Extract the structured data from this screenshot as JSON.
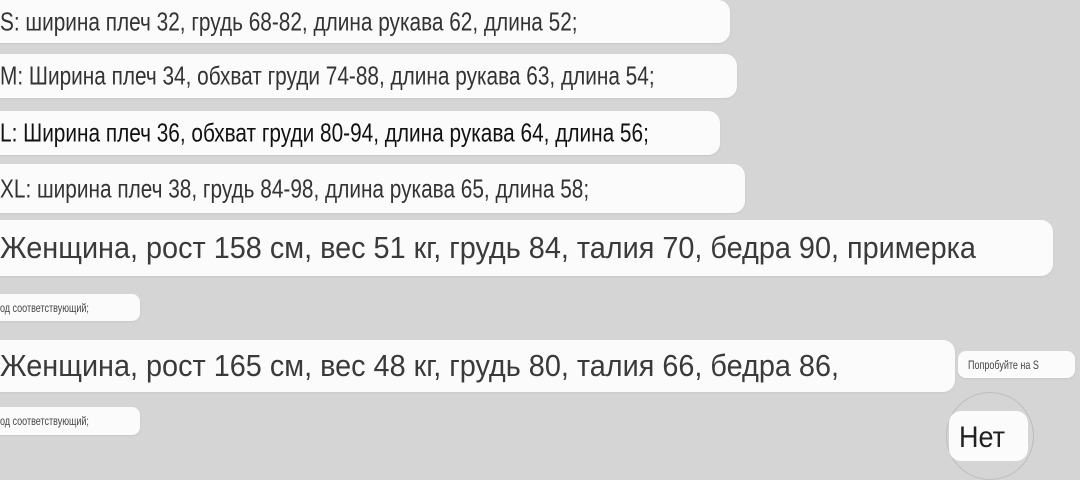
{
  "sizes": [
    {
      "label": "S: ширина плеч 32, грудь 68-82, длина рукава 62, длина 52;"
    },
    {
      "label": "M: Ширина плеч 34, обхват груди 74-88, длина рукава 63, длина 54;"
    },
    {
      "label": "L: Ширина плеч 36, обхват груди 80-94, длина рукава 64, длина 56;"
    },
    {
      "label": "XL: ширина плеч 38, грудь 84-98, длина рукава 65, длина 58;"
    }
  ],
  "reviews": [
    {
      "text": "Женщина, рост 158 см, вес 51 кг, грудь 84, талия 70, бедра 90, примерка",
      "note": "од соответствующий;"
    },
    {
      "text": "Женщина, рост 165 см, вес 48 кг, грудь 80, талия 66, бедра 86,",
      "note": "од соответствующий;",
      "suggestion": "Попробуйте на S"
    }
  ],
  "answer_button": "Нет",
  "colors": {
    "background": "#d5d5d5",
    "bubble": "#fbfbfb"
  }
}
